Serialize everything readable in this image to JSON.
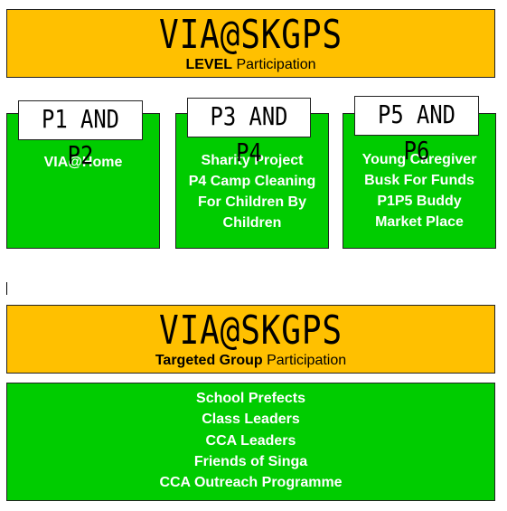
{
  "banner_top": {
    "title": "VIA@SKGPS",
    "sub_bold": "LEVEL",
    "sub_rest": " Participation"
  },
  "levels": [
    {
      "label": "P1 AND P2",
      "items": [
        "VIA@Home"
      ]
    },
    {
      "label": "P3 AND P4",
      "items": [
        "Sharity Project",
        "P4 Camp Cleaning",
        "For Children By",
        "Children"
      ]
    },
    {
      "label": "P5 AND P6",
      "items": [
        "Young Caregiver",
        "Busk For Funds",
        "P1P5 Buddy",
        "Market Place"
      ]
    }
  ],
  "banner_bottom": {
    "title": "VIA@SKGPS",
    "sub_bold": "Targeted Group",
    "sub_rest": " Participation"
  },
  "targeted": [
    "School Prefects",
    "Class Leaders",
    "CCA Leaders",
    "Friends of Singa",
    "CCA Outreach Programme"
  ],
  "colors": {
    "banner": "#ffc000",
    "green": "#00cc00"
  }
}
